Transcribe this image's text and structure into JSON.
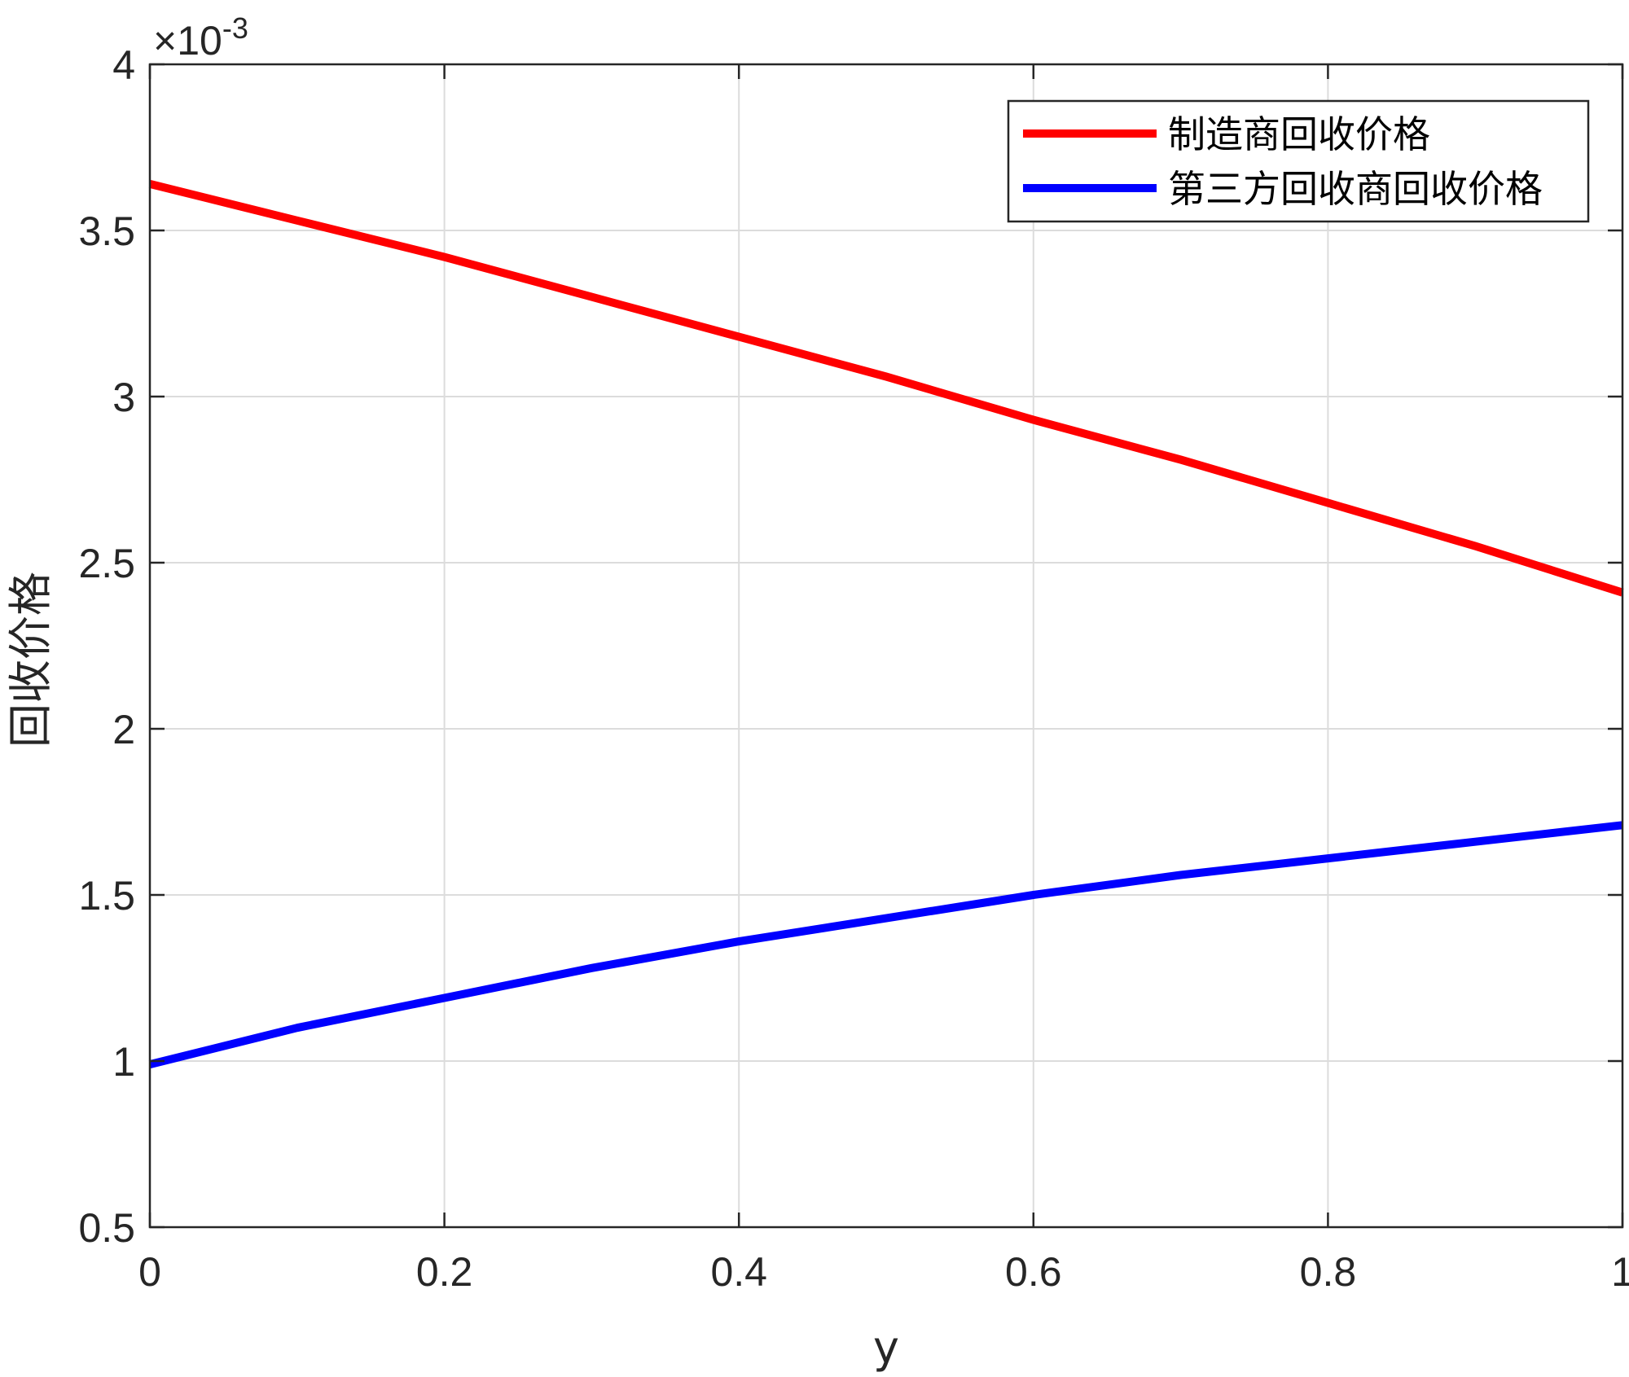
{
  "chart_data": {
    "type": "line",
    "title": "",
    "xlabel": "y",
    "ylabel": "回收价格",
    "xlim": [
      0,
      1
    ],
    "ylim": [
      0.5,
      4
    ],
    "y_scale_exponent": "×10-3",
    "y_multiplier_base": "×10",
    "y_multiplier_power": "-3",
    "x_ticks": [
      "0",
      "0.2",
      "0.4",
      "0.6",
      "0.8",
      "1"
    ],
    "y_ticks": [
      "0.5",
      "1",
      "1.5",
      "2",
      "2.5",
      "3",
      "3.5",
      "4"
    ],
    "grid": true,
    "legend_position": "top-right",
    "x": [
      0,
      0.1,
      0.2,
      0.3,
      0.4,
      0.5,
      0.6,
      0.7,
      0.8,
      0.9,
      1.0
    ],
    "series": [
      {
        "name": "制造商回收价格",
        "color": "#ff0000",
        "values": [
          3.64,
          3.53,
          3.42,
          3.3,
          3.18,
          3.06,
          2.93,
          2.81,
          2.68,
          2.55,
          2.41
        ]
      },
      {
        "name": "第三方回收商回收价格",
        "color": "#0000ff",
        "values": [
          0.99,
          1.1,
          1.19,
          1.28,
          1.36,
          1.43,
          1.5,
          1.56,
          1.61,
          1.66,
          1.71
        ]
      }
    ]
  }
}
